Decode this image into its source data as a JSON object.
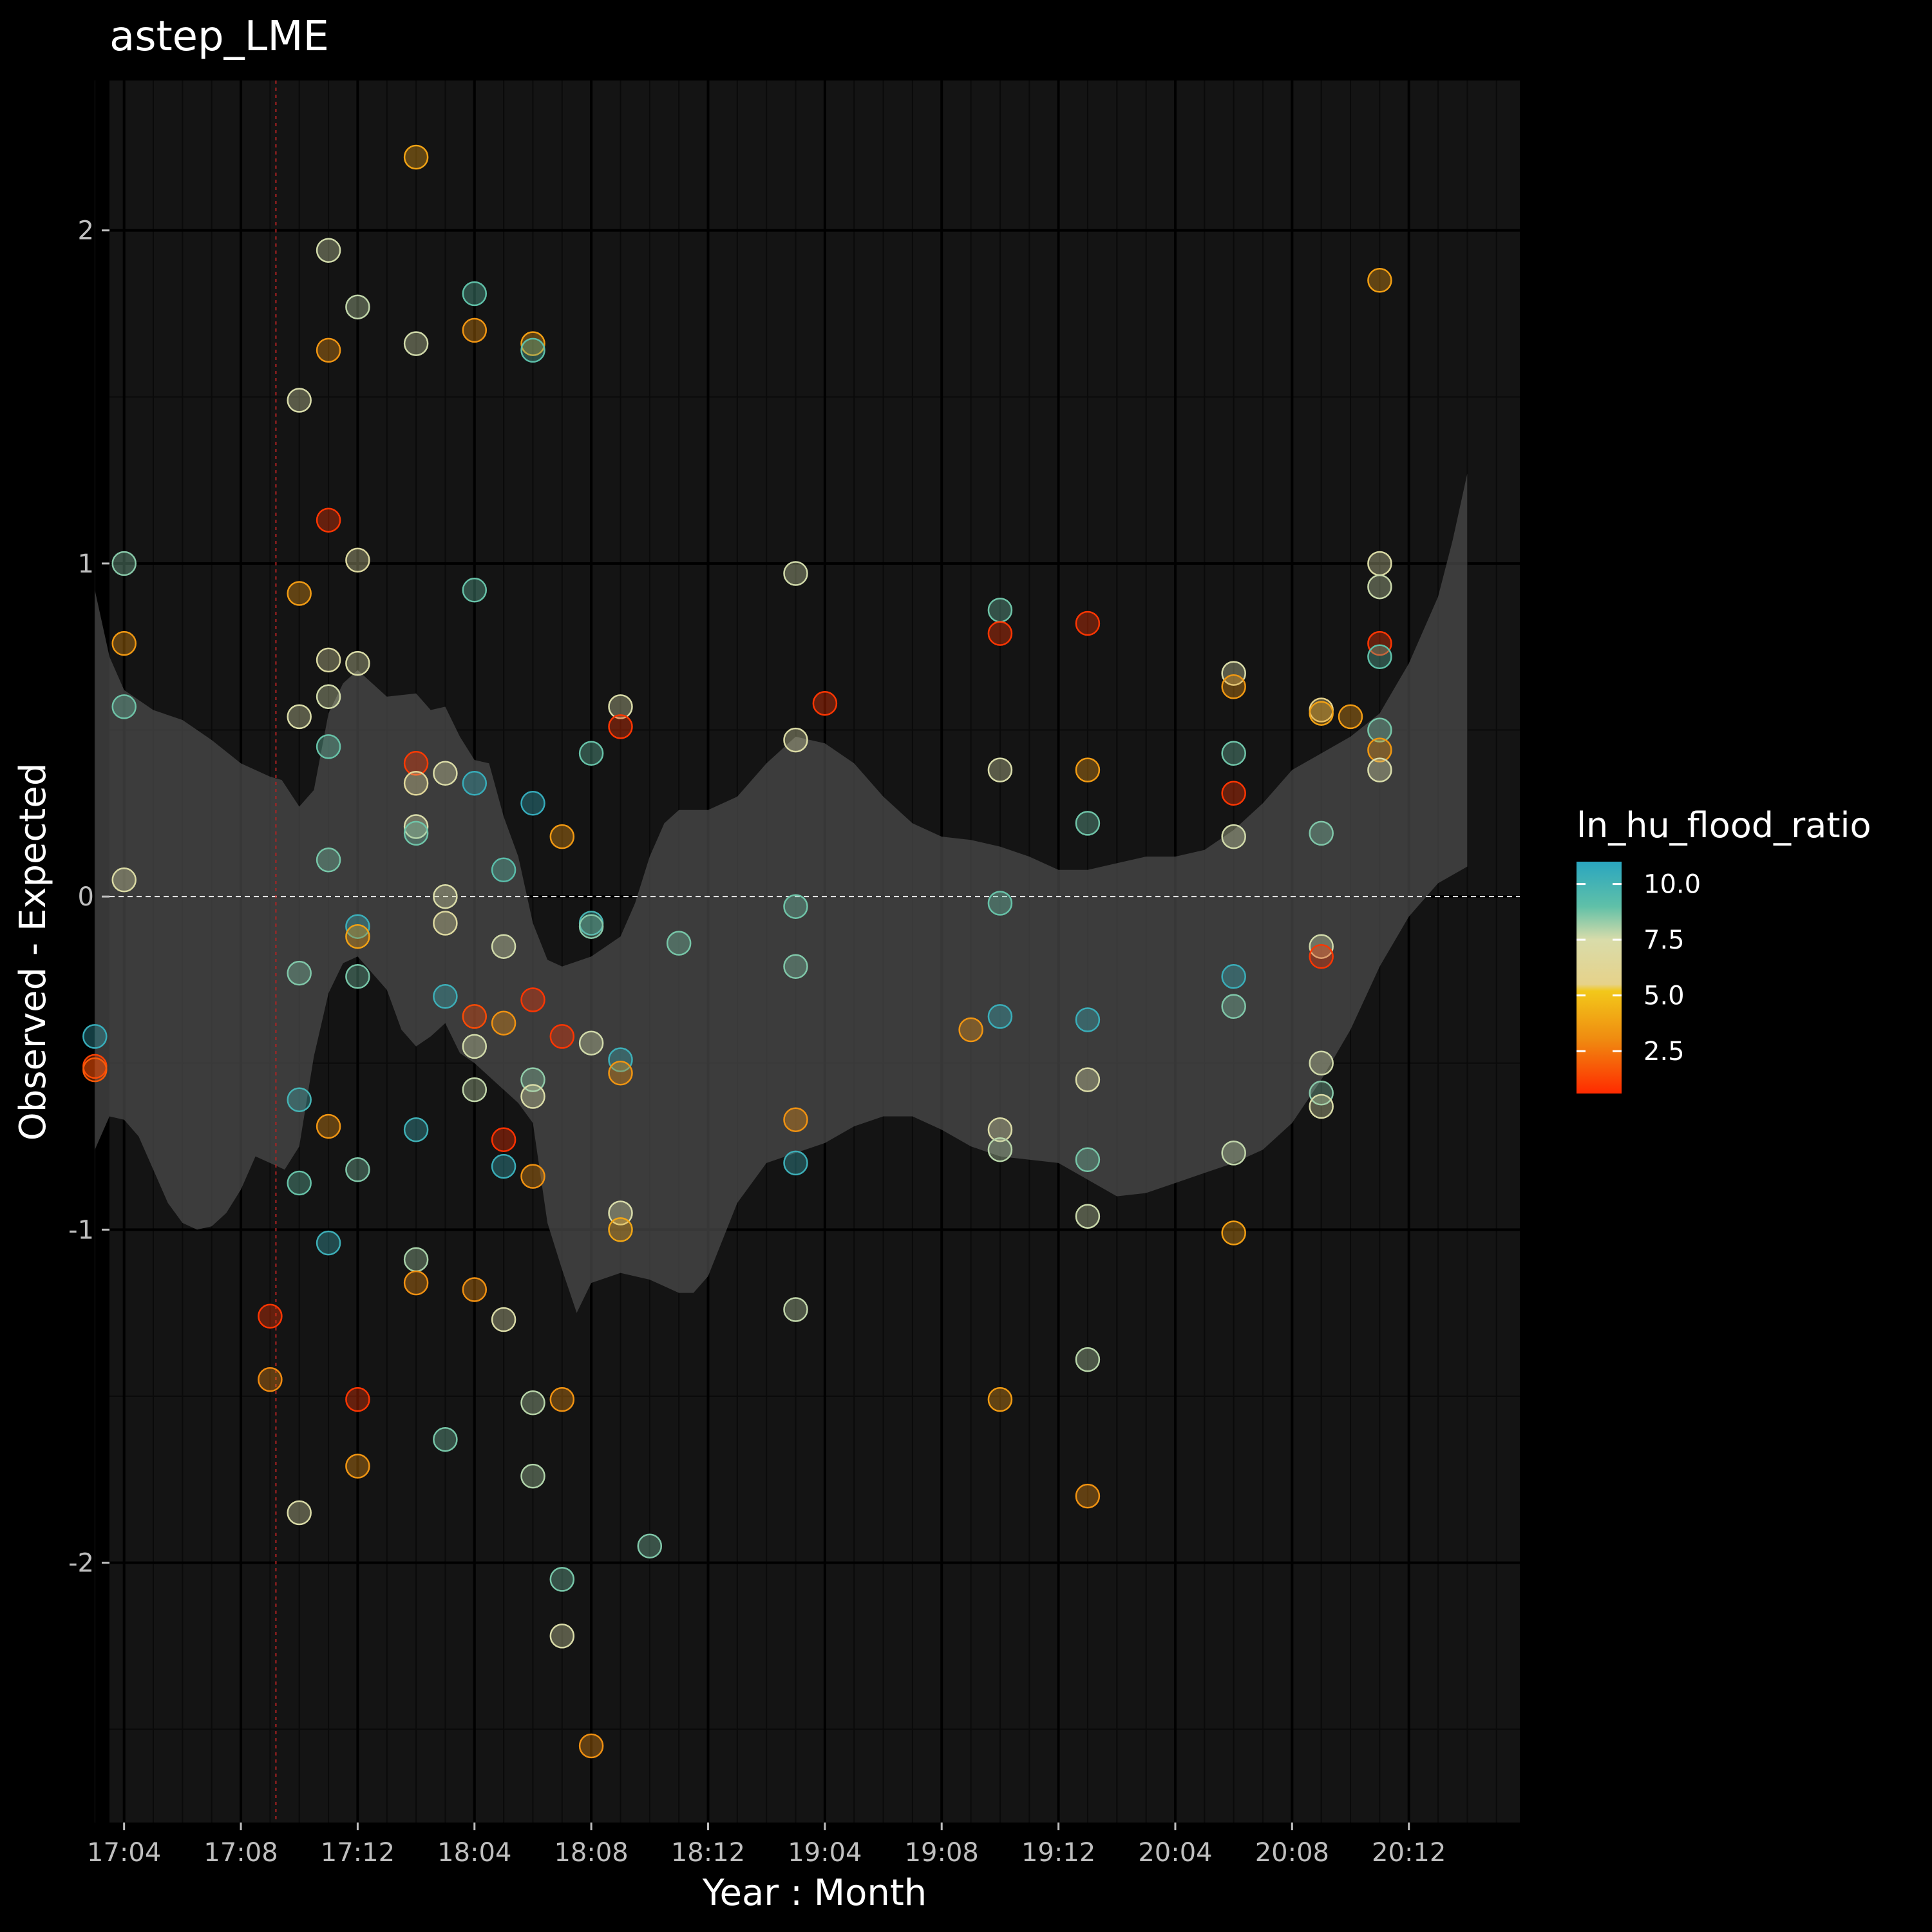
{
  "chart_data": {
    "type": "scatter",
    "title": "astep_LME",
    "xlabel": "Year : Month",
    "ylabel": "Observed - Expected",
    "x_ticks": [
      "17:04",
      "17:08",
      "17:12",
      "18:04",
      "18:08",
      "18:12",
      "19:04",
      "19:08",
      "19:12",
      "20:04",
      "20:08",
      "20:12"
    ],
    "xlim": [
      -0.5,
      47.8
    ],
    "ylim": [
      -2.78,
      2.45
    ],
    "y_ticks": [
      -2,
      -1,
      0,
      1,
      2
    ],
    "y_tick_labels": [
      "-2",
      "-1",
      "0",
      "1",
      "2"
    ],
    "grid": true,
    "reference_line": {
      "y": 0,
      "style": "dashed",
      "color": "#ffffff"
    },
    "vline": {
      "x": 5.2,
      "style": "dotted",
      "color": "#b22222"
    },
    "colors": {
      "background": "#000000",
      "panel": "#141414",
      "grid_major": "#000000",
      "grid_minor": "#0a0a0a",
      "ribbon": "#4a4a4a"
    },
    "legend": {
      "title": "ln_hu_flood_ratio",
      "position": "right",
      "range": [
        0.6,
        11
      ],
      "ticks": [
        10,
        7.5,
        5,
        2.5
      ],
      "tick_labels": [
        "10.0",
        "7.5",
        "5.0",
        "2.5"
      ],
      "gradient": [
        {
          "value": 0.6,
          "color": "#ff2a00"
        },
        {
          "value": 3.0,
          "color": "#f08a10"
        },
        {
          "value": 5.2,
          "color": "#f2c81a"
        },
        {
          "value": 5.5,
          "color": "#e6d28a"
        },
        {
          "value": 7.5,
          "color": "#d9dcaa"
        },
        {
          "value": 9.0,
          "color": "#5fc0a8"
        },
        {
          "value": 11,
          "color": "#2aa6c0"
        }
      ]
    },
    "ribbon": {
      "upper": [
        [
          -1,
          0.92
        ],
        [
          -0.5,
          0.72
        ],
        [
          0,
          0.62
        ],
        [
          1,
          0.56
        ],
        [
          2,
          0.53
        ],
        [
          3,
          0.47
        ],
        [
          4,
          0.4
        ],
        [
          5,
          0.36
        ],
        [
          5.4,
          0.35
        ],
        [
          6,
          0.27
        ],
        [
          6.5,
          0.32
        ],
        [
          7,
          0.55
        ],
        [
          7.5,
          0.64
        ],
        [
          8,
          0.68
        ],
        [
          9,
          0.6
        ],
        [
          10,
          0.61
        ],
        [
          10.5,
          0.56
        ],
        [
          11,
          0.57
        ],
        [
          11.5,
          0.48
        ],
        [
          12,
          0.41
        ],
        [
          12.5,
          0.4
        ],
        [
          13,
          0.24
        ],
        [
          13.5,
          0.12
        ],
        [
          14,
          -0.08
        ],
        [
          14.5,
          -0.19
        ],
        [
          15,
          -0.21
        ],
        [
          16,
          -0.18
        ],
        [
          17,
          -0.12
        ],
        [
          17.5,
          -0.02
        ],
        [
          18,
          0.12
        ],
        [
          18.5,
          0.22
        ],
        [
          19,
          0.26
        ],
        [
          20,
          0.26
        ],
        [
          21,
          0.3
        ],
        [
          22,
          0.4
        ],
        [
          23,
          0.48
        ],
        [
          24,
          0.46
        ],
        [
          25,
          0.4
        ],
        [
          26,
          0.3
        ],
        [
          27,
          0.22
        ],
        [
          28,
          0.18
        ],
        [
          29,
          0.17
        ],
        [
          30,
          0.15
        ],
        [
          31,
          0.12
        ],
        [
          32,
          0.08
        ],
        [
          33,
          0.08
        ],
        [
          34,
          0.1
        ],
        [
          35,
          0.12
        ],
        [
          36,
          0.12
        ],
        [
          37,
          0.14
        ],
        [
          38,
          0.2
        ],
        [
          39,
          0.28
        ],
        [
          40,
          0.38
        ],
        [
          41,
          0.43
        ],
        [
          42,
          0.48
        ],
        [
          43,
          0.55
        ],
        [
          44,
          0.7
        ],
        [
          45,
          0.9
        ],
        [
          45.5,
          1.07
        ],
        [
          46,
          1.27
        ]
      ],
      "lower": [
        [
          -1,
          -0.76
        ],
        [
          -0.5,
          -0.66
        ],
        [
          0,
          -0.67
        ],
        [
          0.5,
          -0.72
        ],
        [
          1,
          -0.82
        ],
        [
          1.5,
          -0.92
        ],
        [
          2,
          -0.98
        ],
        [
          2.5,
          -1.0
        ],
        [
          3,
          -0.99
        ],
        [
          3.5,
          -0.95
        ],
        [
          4,
          -0.88
        ],
        [
          4.5,
          -0.78
        ],
        [
          5,
          -0.8
        ],
        [
          5.5,
          -0.82
        ],
        [
          6,
          -0.75
        ],
        [
          6.5,
          -0.48
        ],
        [
          7,
          -0.29
        ],
        [
          7.5,
          -0.2
        ],
        [
          8,
          -0.18
        ],
        [
          9,
          -0.28
        ],
        [
          9.5,
          -0.4
        ],
        [
          10,
          -0.45
        ],
        [
          10.5,
          -0.42
        ],
        [
          11,
          -0.38
        ],
        [
          11.5,
          -0.47
        ],
        [
          12,
          -0.5
        ],
        [
          12.5,
          -0.54
        ],
        [
          13,
          -0.58
        ],
        [
          13.5,
          -0.62
        ],
        [
          14,
          -0.68
        ],
        [
          14.5,
          -0.98
        ],
        [
          15,
          -1.12
        ],
        [
          15.5,
          -1.25
        ],
        [
          16,
          -1.16
        ],
        [
          17,
          -1.13
        ],
        [
          18,
          -1.15
        ],
        [
          19,
          -1.19
        ],
        [
          19.5,
          -1.19
        ],
        [
          20,
          -1.14
        ],
        [
          21,
          -0.92
        ],
        [
          22,
          -0.8
        ],
        [
          23,
          -0.77
        ],
        [
          24,
          -0.74
        ],
        [
          25,
          -0.69
        ],
        [
          26,
          -0.66
        ],
        [
          27,
          -0.66
        ],
        [
          28,
          -0.7
        ],
        [
          29,
          -0.75
        ],
        [
          30,
          -0.78
        ],
        [
          31,
          -0.79
        ],
        [
          32,
          -0.8
        ],
        [
          33,
          -0.85
        ],
        [
          34,
          -0.9
        ],
        [
          35,
          -0.89
        ],
        [
          36,
          -0.86
        ],
        [
          37,
          -0.83
        ],
        [
          38,
          -0.8
        ],
        [
          39,
          -0.76
        ],
        [
          40,
          -0.68
        ],
        [
          41,
          -0.55
        ],
        [
          42,
          -0.4
        ],
        [
          43,
          -0.21
        ],
        [
          44,
          -0.06
        ],
        [
          45,
          0.04
        ],
        [
          46,
          0.09
        ]
      ]
    },
    "points": [
      {
        "x": -1,
        "y": -0.42,
        "c": 10.5
      },
      {
        "x": -1,
        "y": -0.51,
        "c": 1.2
      },
      {
        "x": -1,
        "y": -0.52,
        "c": 1.8
      },
      {
        "x": 0,
        "y": 1.0,
        "c": 8.5
      },
      {
        "x": 0,
        "y": 0.76,
        "c": 3.5
      },
      {
        "x": 0,
        "y": 0.57,
        "c": 8.8
      },
      {
        "x": 0,
        "y": 0.05,
        "c": 7.2
      },
      {
        "x": 5,
        "y": -1.26,
        "c": 0.9
      },
      {
        "x": 5,
        "y": -1.45,
        "c": 3.0
      },
      {
        "x": 6,
        "y": 1.49,
        "c": 7.5
      },
      {
        "x": 6,
        "y": 0.91,
        "c": 3.6
      },
      {
        "x": 6,
        "y": 0.54,
        "c": 7.4
      },
      {
        "x": 6,
        "y": -0.23,
        "c": 8.6
      },
      {
        "x": 6,
        "y": -0.61,
        "c": 10.0
      },
      {
        "x": 6,
        "y": -0.86,
        "c": 8.9
      },
      {
        "x": 6,
        "y": -1.85,
        "c": 7.3
      },
      {
        "x": 7,
        "y": 1.94,
        "c": 7.6
      },
      {
        "x": 7,
        "y": 1.64,
        "c": 3.4
      },
      {
        "x": 7,
        "y": 0.71,
        "c": 7.0
      },
      {
        "x": 7,
        "y": 0.6,
        "c": 7.6
      },
      {
        "x": 7,
        "y": 0.45,
        "c": 8.9
      },
      {
        "x": 7,
        "y": 0.11,
        "c": 8.7
      },
      {
        "x": 7,
        "y": -0.69,
        "c": 3.4
      },
      {
        "x": 7,
        "y": -1.04,
        "c": 10.3
      },
      {
        "x": 7,
        "y": 1.13,
        "c": 0.9
      },
      {
        "x": 8,
        "y": 1.77,
        "c": 7.8
      },
      {
        "x": 8,
        "y": 1.01,
        "c": 6.9
      },
      {
        "x": 8,
        "y": 0.7,
        "c": 7.4
      },
      {
        "x": 8,
        "y": -0.09,
        "c": 10.4
      },
      {
        "x": 8,
        "y": -0.12,
        "c": 3.8
      },
      {
        "x": 8,
        "y": -0.24,
        "c": 8.7
      },
      {
        "x": 8,
        "y": -0.82,
        "c": 8.6
      },
      {
        "x": 8,
        "y": -1.51,
        "c": 0.9
      },
      {
        "x": 8,
        "y": -1.71,
        "c": 3.4
      },
      {
        "x": 10,
        "y": 2.22,
        "c": 3.9
      },
      {
        "x": 10,
        "y": 1.66,
        "c": 7.6
      },
      {
        "x": 10,
        "y": 0.4,
        "c": 1.0
      },
      {
        "x": 10,
        "y": 0.34,
        "c": 6.5
      },
      {
        "x": 10,
        "y": 0.21,
        "c": 7.5
      },
      {
        "x": 10,
        "y": 0.19,
        "c": 8.8
      },
      {
        "x": 10,
        "y": -0.7,
        "c": 10.2
      },
      {
        "x": 10,
        "y": -1.09,
        "c": 8.1
      },
      {
        "x": 10,
        "y": -1.16,
        "c": 3.2
      },
      {
        "x": 11,
        "y": 0.37,
        "c": 7.3
      },
      {
        "x": 11,
        "y": 0.0,
        "c": 7.4
      },
      {
        "x": 11,
        "y": -0.08,
        "c": 6.9
      },
      {
        "x": 11,
        "y": -0.3,
        "c": 10.3
      },
      {
        "x": 11,
        "y": -1.63,
        "c": 8.7
      },
      {
        "x": 12,
        "y": 1.81,
        "c": 9.0
      },
      {
        "x": 12,
        "y": 1.7,
        "c": 3.4
      },
      {
        "x": 12,
        "y": 0.92,
        "c": 8.9
      },
      {
        "x": 12,
        "y": 0.34,
        "c": 10.5
      },
      {
        "x": 12,
        "y": -0.36,
        "c": 1.4
      },
      {
        "x": 12,
        "y": -0.45,
        "c": 7.6
      },
      {
        "x": 12,
        "y": -0.58,
        "c": 7.8
      },
      {
        "x": 12,
        "y": -1.18,
        "c": 3.2
      },
      {
        "x": 13,
        "y": 0.08,
        "c": 9.2
      },
      {
        "x": 13,
        "y": -0.15,
        "c": 7.6
      },
      {
        "x": 13,
        "y": -0.38,
        "c": 3.3
      },
      {
        "x": 13,
        "y": -0.73,
        "c": 0.8
      },
      {
        "x": 13,
        "y": -0.81,
        "c": 10.4
      },
      {
        "x": 13,
        "y": -1.27,
        "c": 7.3
      },
      {
        "x": 14,
        "y": 1.66,
        "c": 3.7
      },
      {
        "x": 14,
        "y": 1.64,
        "c": 9.1
      },
      {
        "x": 14,
        "y": 0.28,
        "c": 10.6
      },
      {
        "x": 14,
        "y": -0.31,
        "c": 0.9
      },
      {
        "x": 14,
        "y": -0.55,
        "c": 8.4
      },
      {
        "x": 14,
        "y": -0.6,
        "c": 7.4
      },
      {
        "x": 14,
        "y": -0.84,
        "c": 3.3
      },
      {
        "x": 14,
        "y": -1.52,
        "c": 7.9
      },
      {
        "x": 14,
        "y": -1.74,
        "c": 8.0
      },
      {
        "x": 15,
        "y": 0.18,
        "c": 3.5
      },
      {
        "x": 15,
        "y": -0.42,
        "c": 0.9
      },
      {
        "x": 15,
        "y": -1.51,
        "c": 3.3
      },
      {
        "x": 15,
        "y": -2.05,
        "c": 8.7
      },
      {
        "x": 15,
        "y": -2.22,
        "c": 7.4
      },
      {
        "x": 16,
        "y": 0.43,
        "c": 8.9
      },
      {
        "x": 16,
        "y": -0.08,
        "c": 9.9
      },
      {
        "x": 16,
        "y": -0.09,
        "c": 8.5
      },
      {
        "x": 16,
        "y": -0.44,
        "c": 7.6
      },
      {
        "x": 16,
        "y": -2.55,
        "c": 3.2
      },
      {
        "x": 17,
        "y": 0.57,
        "c": 7.4
      },
      {
        "x": 17,
        "y": 0.51,
        "c": 0.9
      },
      {
        "x": 17,
        "y": -0.49,
        "c": 10.3
      },
      {
        "x": 17,
        "y": -0.53,
        "c": 3.4
      },
      {
        "x": 17,
        "y": -0.95,
        "c": 7.5
      },
      {
        "x": 17,
        "y": -1.0,
        "c": 4.0
      },
      {
        "x": 18,
        "y": -1.95,
        "c": 8.6
      },
      {
        "x": 19,
        "y": -0.14,
        "c": 8.7
      },
      {
        "x": 23,
        "y": 0.97,
        "c": 7.6
      },
      {
        "x": 23,
        "y": 0.47,
        "c": 7.2
      },
      {
        "x": 23,
        "y": -0.03,
        "c": 8.8
      },
      {
        "x": 23,
        "y": -0.21,
        "c": 8.6
      },
      {
        "x": 23,
        "y": -0.67,
        "c": 3.3
      },
      {
        "x": 23,
        "y": -0.8,
        "c": 10.3
      },
      {
        "x": 23,
        "y": -1.24,
        "c": 7.8
      },
      {
        "x": 24,
        "y": 0.58,
        "c": 0.9
      },
      {
        "x": 29,
        "y": -0.4,
        "c": 3.4
      },
      {
        "x": 30,
        "y": 0.86,
        "c": 8.8
      },
      {
        "x": 30,
        "y": 0.79,
        "c": 0.9
      },
      {
        "x": 30,
        "y": 0.38,
        "c": 7.5
      },
      {
        "x": 30,
        "y": -0.02,
        "c": 8.9
      },
      {
        "x": 30,
        "y": -0.36,
        "c": 10.4
      },
      {
        "x": 30,
        "y": -0.7,
        "c": 7.3
      },
      {
        "x": 30,
        "y": -0.76,
        "c": 7.9
      },
      {
        "x": 30,
        "y": -1.51,
        "c": 3.6
      },
      {
        "x": 33,
        "y": 0.82,
        "c": 0.9
      },
      {
        "x": 33,
        "y": 0.38,
        "c": 3.6
      },
      {
        "x": 33,
        "y": 0.22,
        "c": 8.8
      },
      {
        "x": 33,
        "y": -0.37,
        "c": 10.4
      },
      {
        "x": 33,
        "y": -0.55,
        "c": 7.3
      },
      {
        "x": 33,
        "y": -0.79,
        "c": 8.7
      },
      {
        "x": 33,
        "y": -0.96,
        "c": 7.7
      },
      {
        "x": 33,
        "y": -1.39,
        "c": 7.9
      },
      {
        "x": 33,
        "y": -1.8,
        "c": 3.3
      },
      {
        "x": 38,
        "y": 0.67,
        "c": 7.4
      },
      {
        "x": 38,
        "y": 0.63,
        "c": 3.5
      },
      {
        "x": 38,
        "y": 0.43,
        "c": 8.8
      },
      {
        "x": 38,
        "y": 0.31,
        "c": 0.9
      },
      {
        "x": 38,
        "y": 0.18,
        "c": 7.6
      },
      {
        "x": 38,
        "y": -0.24,
        "c": 10.4
      },
      {
        "x": 38,
        "y": -0.33,
        "c": 8.6
      },
      {
        "x": 38,
        "y": -0.77,
        "c": 7.8
      },
      {
        "x": 38,
        "y": -1.01,
        "c": 3.7
      },
      {
        "x": 41,
        "y": 0.56,
        "c": 5.5
      },
      {
        "x": 41,
        "y": 0.55,
        "c": 3.8
      },
      {
        "x": 41,
        "y": 0.19,
        "c": 8.6
      },
      {
        "x": 41,
        "y": -0.15,
        "c": 7.6
      },
      {
        "x": 41,
        "y": -0.18,
        "c": 0.9
      },
      {
        "x": 41,
        "y": -0.5,
        "c": 7.6
      },
      {
        "x": 41,
        "y": -0.59,
        "c": 8.5
      },
      {
        "x": 41,
        "y": -0.63,
        "c": 7.4
      },
      {
        "x": 42,
        "y": 0.54,
        "c": 3.6
      },
      {
        "x": 43,
        "y": 1.85,
        "c": 3.7
      },
      {
        "x": 43,
        "y": 1.0,
        "c": 7.2
      },
      {
        "x": 43,
        "y": 0.93,
        "c": 7.7
      },
      {
        "x": 43,
        "y": 0.76,
        "c": 0.9
      },
      {
        "x": 43,
        "y": 0.72,
        "c": 9.0
      },
      {
        "x": 43,
        "y": 0.5,
        "c": 8.7
      },
      {
        "x": 43,
        "y": 0.44,
        "c": 3.5
      },
      {
        "x": 43,
        "y": 0.38,
        "c": 7.5
      }
    ]
  }
}
